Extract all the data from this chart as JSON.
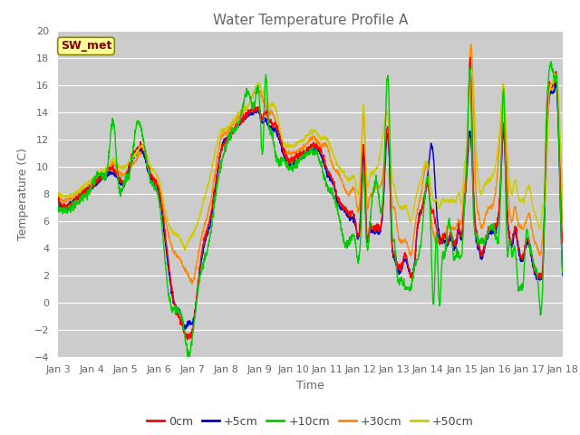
{
  "title": "Water Temperature Profile A",
  "xlabel": "Time",
  "ylabel": "Temperature (C)",
  "ylim": [
    -4,
    20
  ],
  "yticks": [
    -4,
    -2,
    0,
    2,
    4,
    6,
    8,
    10,
    12,
    14,
    16,
    18,
    20
  ],
  "xtick_labels": [
    "Jan 3",
    "Jan 4",
    "Jan 5",
    "Jan 6",
    "Jan 7",
    "Jan 8",
    "Jan 9",
    "Jan 10",
    "Jan 11",
    "Jan 12",
    "Jan 13",
    "Jan 14",
    "Jan 15",
    "Jan 16",
    "Jan 17",
    "Jan 18"
  ],
  "legend_entries": [
    "0cm",
    "+5cm",
    "+10cm",
    "+30cm",
    "+50cm"
  ],
  "line_colors": [
    "#ff0000",
    "#0000cc",
    "#00cc00",
    "#ff8800",
    "#cccc00"
  ],
  "annotation_text": "SW_met",
  "annotation_bg": "#ffff99",
  "annotation_border": "#888800",
  "title_color": "#666666",
  "axis_label_color": "#666666",
  "tick_color": "#666666",
  "bg_color": "#cccccc",
  "grid_color": "#ffffff",
  "n_points": 2000,
  "hours": 360
}
